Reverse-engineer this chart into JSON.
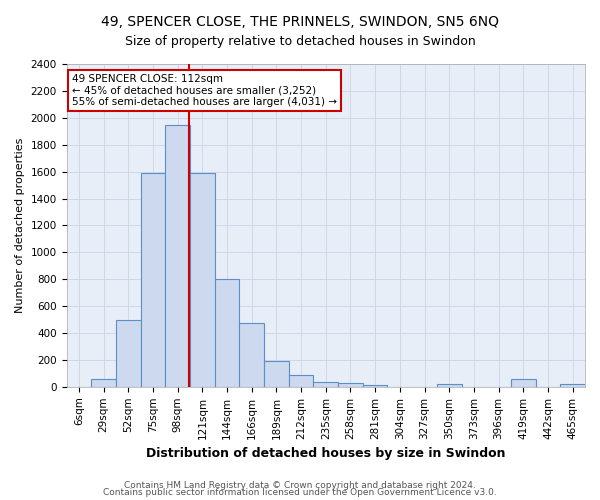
{
  "title": "49, SPENCER CLOSE, THE PRINNELS, SWINDON, SN5 6NQ",
  "subtitle": "Size of property relative to detached houses in Swindon",
  "xlabel": "Distribution of detached houses by size in Swindon",
  "ylabel": "Number of detached properties",
  "categories": [
    "6sqm",
    "29sqm",
    "52sqm",
    "75sqm",
    "98sqm",
    "121sqm",
    "144sqm",
    "166sqm",
    "189sqm",
    "212sqm",
    "235sqm",
    "258sqm",
    "281sqm",
    "304sqm",
    "327sqm",
    "350sqm",
    "373sqm",
    "396sqm",
    "419sqm",
    "442sqm",
    "465sqm"
  ],
  "values": [
    0,
    60,
    500,
    1590,
    1950,
    1590,
    800,
    475,
    195,
    90,
    35,
    25,
    15,
    0,
    0,
    20,
    0,
    0,
    60,
    0,
    20
  ],
  "bar_color": "#ccd9ee",
  "bar_edge_color": "#5b8fc9",
  "vline_color": "#cc0000",
  "annotation_title": "49 SPENCER CLOSE: 112sqm",
  "annotation_line1": "← 45% of detached houses are smaller (3,252)",
  "annotation_line2": "55% of semi-detached houses are larger (4,031) →",
  "ylim": [
    0,
    2400
  ],
  "yticks": [
    0,
    200,
    400,
    600,
    800,
    1000,
    1200,
    1400,
    1600,
    1800,
    2000,
    2200,
    2400
  ],
  "grid_color": "#d0d8e8",
  "background_color": "#e8eef8",
  "annotation_box_color": "#ffffff",
  "annotation_box_edge": "#cc0000",
  "footer1": "Contains HM Land Registry data © Crown copyright and database right 2024.",
  "footer2": "Contains public sector information licensed under the Open Government Licence v3.0.",
  "title_fontsize": 10,
  "subtitle_fontsize": 9,
  "xlabel_fontsize": 9,
  "ylabel_fontsize": 8,
  "tick_fontsize": 7.5,
  "annot_fontsize": 7.5,
  "footer_fontsize": 6.5
}
